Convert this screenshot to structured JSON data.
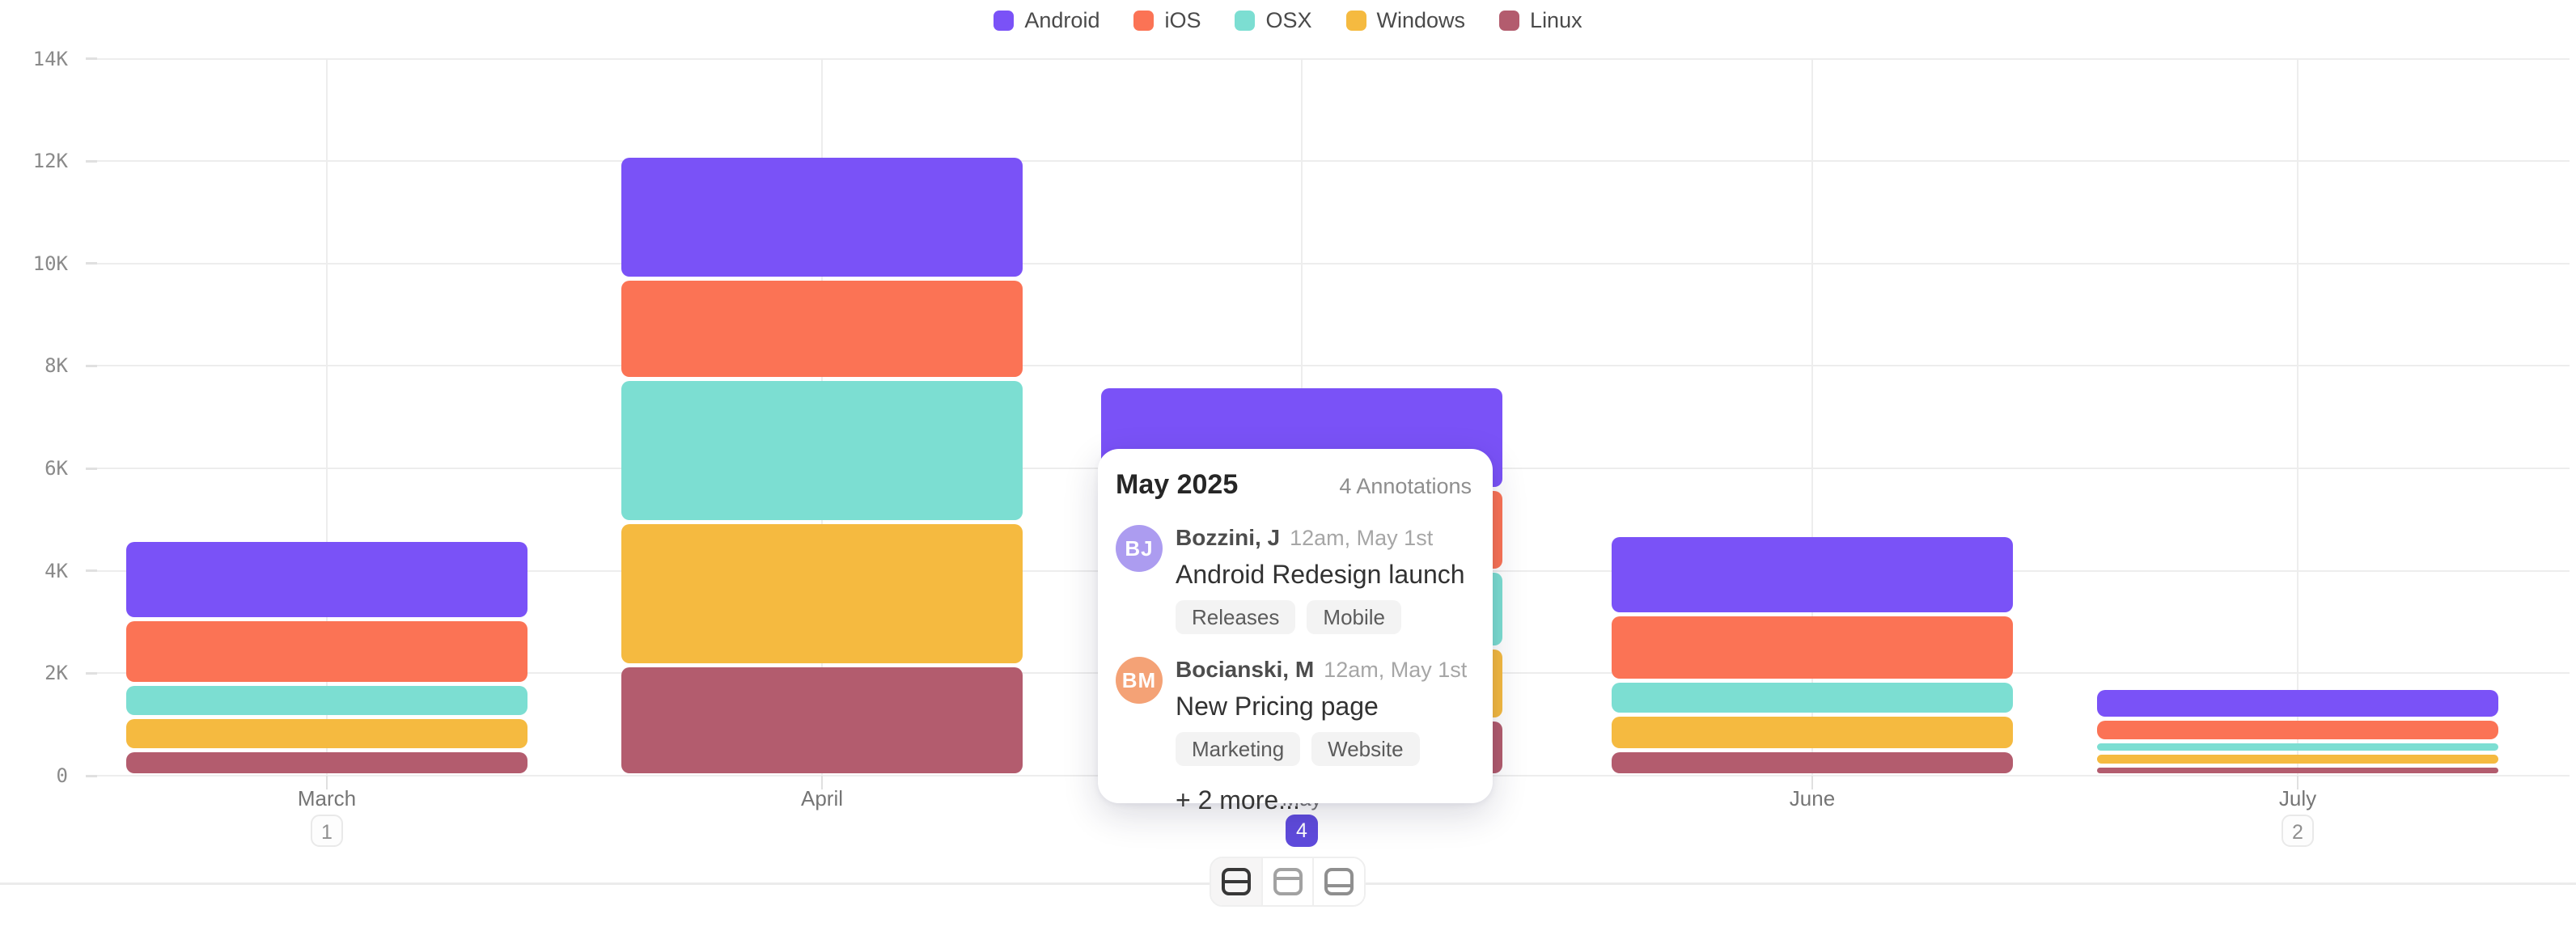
{
  "legend": {
    "items": [
      {
        "label": "Android",
        "color": "#7a52f7"
      },
      {
        "label": "iOS",
        "color": "#fb7355"
      },
      {
        "label": "OSX",
        "color": "#7cded2"
      },
      {
        "label": "Windows",
        "color": "#f5ba40"
      },
      {
        "label": "Linux",
        "color": "#b35c6e"
      }
    ]
  },
  "chart_data": {
    "type": "bar",
    "stacked": true,
    "categories": [
      "March",
      "April",
      "May",
      "June",
      "July"
    ],
    "series": [
      {
        "name": "Android",
        "color": "#7a52f7",
        "values": [
          1550,
          2400,
          2000,
          1550,
          600
        ]
      },
      {
        "name": "iOS",
        "color": "#fb7355",
        "values": [
          1250,
          1950,
          1600,
          1300,
          450
        ]
      },
      {
        "name": "OSX",
        "color": "#7cded2",
        "values": [
          650,
          2800,
          1500,
          650,
          220
        ]
      },
      {
        "name": "Windows",
        "color": "#f5ba40",
        "values": [
          650,
          2800,
          1400,
          700,
          250
        ]
      },
      {
        "name": "Linux",
        "color": "#b35c6e",
        "values": [
          500,
          2150,
          1100,
          500,
          200
        ]
      }
    ],
    "totals": [
      4600,
      12100,
      7600,
      4700,
      1720
    ],
    "y_ticks": [
      "0",
      "2K",
      "4K",
      "6K",
      "8K",
      "10K",
      "12K",
      "14K"
    ],
    "ylim": [
      0,
      14000
    ],
    "grid": true,
    "legend_position": "top",
    "annotation_counts": {
      "March": "1",
      "May": "4",
      "July": "2"
    },
    "selected_month": "May"
  },
  "popup": {
    "title": "May 2025",
    "count_label": "4 Annotations",
    "annotations": [
      {
        "initials": "BJ",
        "avatar_color": "#ac9cf0",
        "author": "Bozzini, J",
        "time": "12am, May 1st",
        "title": "Android Redesign launch",
        "tags": [
          "Releases",
          "Mobile"
        ]
      },
      {
        "initials": "BM",
        "avatar_color": "#f4a276",
        "author": "Bocianski, M",
        "time": "12am, May 1st",
        "title": "New Pricing page",
        "tags": [
          "Marketing",
          "Website"
        ]
      }
    ],
    "more_label": "+ 2 more..."
  },
  "toolbar": {
    "buttons": [
      {
        "name": "layout-split-middle",
        "active": true
      },
      {
        "name": "layout-panel-top",
        "active": false
      },
      {
        "name": "layout-panel-bottom",
        "active": false
      }
    ]
  },
  "colors": {
    "accent_badge": "#5f4bdc",
    "grid_line": "#ededed",
    "tick_dash": "#e0e0e0",
    "axis_text": "#8a8a8a",
    "month_text": "#757575"
  }
}
